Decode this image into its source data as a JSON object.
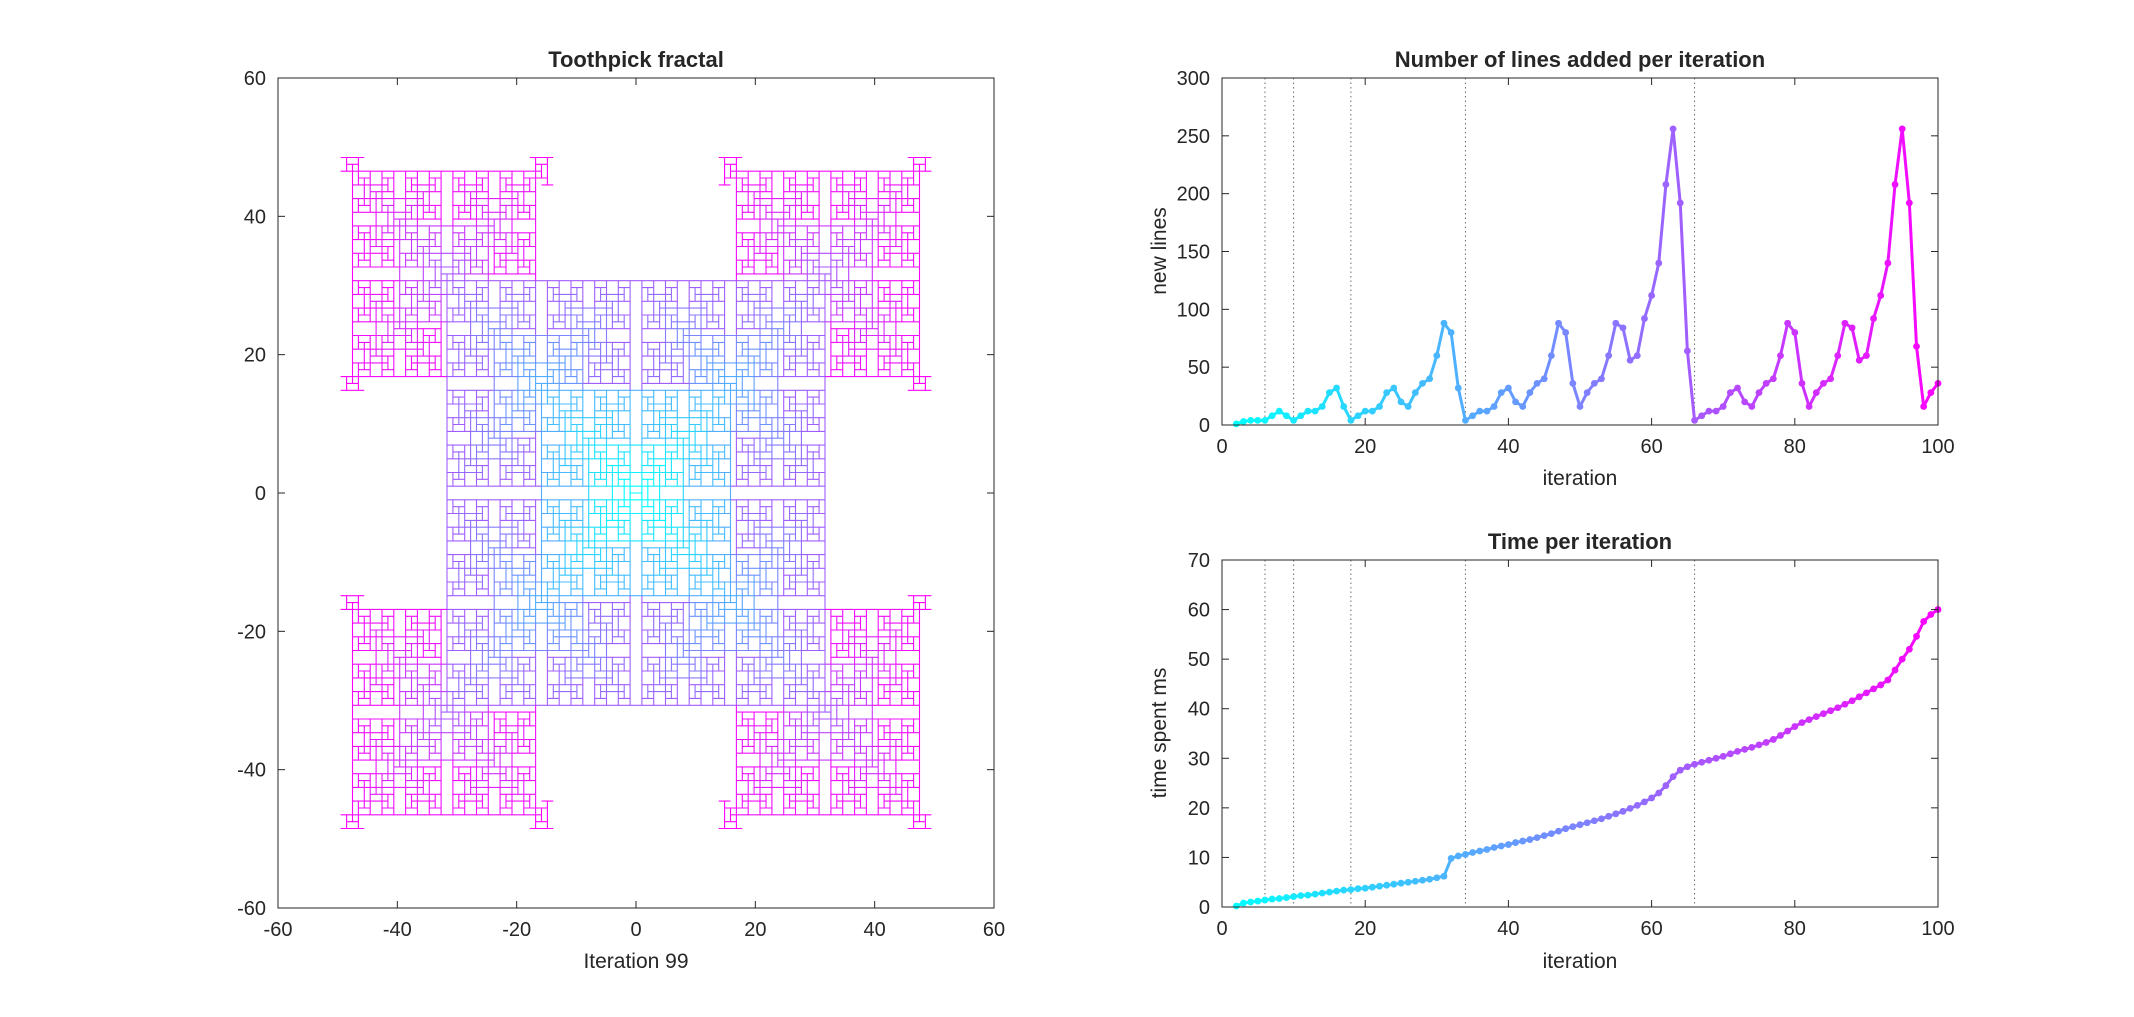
{
  "chart_data": [
    {
      "type": "line",
      "subtype": "fractal-drawing",
      "title": "Toothpick fractal",
      "xlabel": "Iteration 99",
      "ylabel": "",
      "xlim": [
        -60,
        60
      ],
      "ylim": [
        -60,
        60
      ],
      "xticks": [
        -60,
        -40,
        -20,
        0,
        20,
        40,
        60
      ],
      "yticks": [
        -60,
        -40,
        -20,
        0,
        20,
        40,
        60
      ],
      "iteration": 99,
      "color_start": "#00ffff",
      "color_end": "#ff00ff",
      "grid": false,
      "box": true
    },
    {
      "type": "line",
      "title": "Number of lines added per iteration",
      "xlabel": "iteration",
      "ylabel": "new lines",
      "xlim": [
        0,
        100
      ],
      "ylim": [
        0,
        300
      ],
      "xticks": [
        0,
        20,
        40,
        60,
        80,
        100
      ],
      "yticks": [
        0,
        50,
        100,
        150,
        200,
        250,
        300
      ],
      "vlines": [
        6,
        10,
        18,
        34,
        66
      ],
      "markers": true,
      "color_start": "#00ffff",
      "color_end": "#ff00ff",
      "x_start": 2,
      "values": [
        1,
        3,
        4,
        4,
        4,
        8,
        12,
        8,
        4,
        8,
        12,
        12,
        16,
        28,
        32,
        16,
        4,
        8,
        12,
        12,
        16,
        28,
        32,
        20,
        16,
        28,
        36,
        40,
        60,
        88,
        80,
        32,
        4,
        8,
        12,
        12,
        16,
        28,
        32,
        20,
        16,
        28,
        36,
        40,
        60,
        88,
        80,
        36,
        16,
        28,
        36,
        40,
        60,
        88,
        84,
        56,
        60,
        92,
        112,
        140,
        208,
        256,
        192,
        64,
        4,
        8,
        12,
        12,
        16,
        28,
        32,
        20,
        16,
        28,
        36,
        40,
        60,
        88,
        80,
        36,
        16,
        28,
        36,
        40,
        60,
        88,
        84,
        56,
        60,
        92,
        112,
        140,
        208,
        256,
        192,
        68,
        16,
        28,
        36
      ]
    },
    {
      "type": "line",
      "title": "Time per iteration",
      "xlabel": "iteration",
      "ylabel": "time spent ms",
      "xlim": [
        0,
        100
      ],
      "ylim": [
        0,
        70
      ],
      "xticks": [
        0,
        20,
        40,
        60,
        80,
        100
      ],
      "yticks": [
        0,
        10,
        20,
        30,
        40,
        50,
        60,
        70
      ],
      "vlines": [
        6,
        10,
        18,
        34,
        66
      ],
      "markers": true,
      "color_start": "#00ffff",
      "color_end": "#ff00ff",
      "x_start": 2,
      "values": [
        0.2,
        0.8,
        1.0,
        1.2,
        1.4,
        1.6,
        1.7,
        1.9,
        2.1,
        2.3,
        2.4,
        2.6,
        2.8,
        3.0,
        3.2,
        3.4,
        3.5,
        3.7,
        3.8,
        4.0,
        4.2,
        4.4,
        4.6,
        4.8,
        5.0,
        5.2,
        5.4,
        5.6,
        5.9,
        6.2,
        9.8,
        10.3,
        10.6,
        11.0,
        11.3,
        11.6,
        12.0,
        12.3,
        12.6,
        13.0,
        13.3,
        13.6,
        14.0,
        14.4,
        14.8,
        15.3,
        15.8,
        16.2,
        16.6,
        17.0,
        17.4,
        17.8,
        18.3,
        18.8,
        19.3,
        19.9,
        20.5,
        21.2,
        22.0,
        23.0,
        24.5,
        26.3,
        27.6,
        28.3,
        28.8,
        29.2,
        29.6,
        30.0,
        30.4,
        30.9,
        31.4,
        31.8,
        32.2,
        32.7,
        33.2,
        33.8,
        34.6,
        35.5,
        36.4,
        37.2,
        37.8,
        38.4,
        39.0,
        39.6,
        40.2,
        40.9,
        41.6,
        42.4,
        43.2,
        44.0,
        44.8,
        45.8,
        47.8,
        50.0,
        52.0,
        54.6,
        57.6,
        59.0,
        60.0
      ]
    }
  ]
}
